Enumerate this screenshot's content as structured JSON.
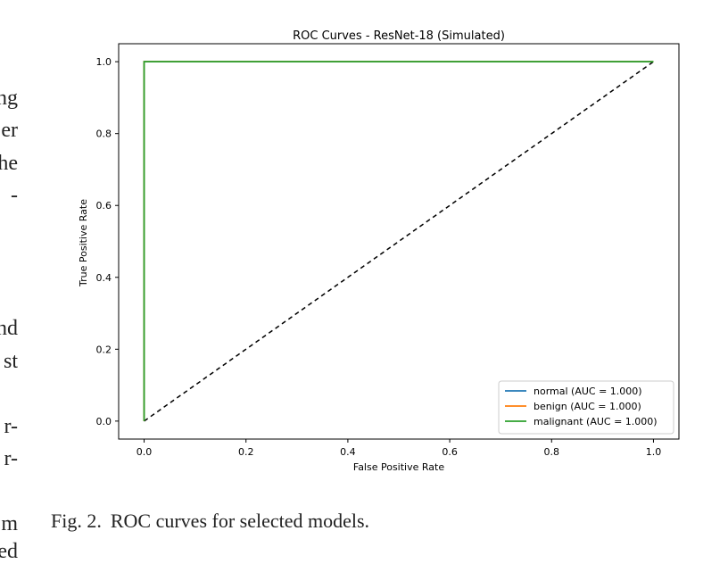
{
  "margin_text": [
    "ng",
    "er",
    "he",
    "-",
    "nd",
    "st",
    "r-",
    "r-",
    "m",
    "ed"
  ],
  "caption": {
    "label": "Fig. 2.",
    "text": "ROC curves for selected models."
  },
  "chart_data": {
    "type": "line",
    "title": "ROC Curves - ResNet-18 (Simulated)",
    "xlabel": "False Positive Rate",
    "ylabel": "True Positive Rate",
    "xlim": [
      -0.05,
      1.05
    ],
    "ylim": [
      -0.05,
      1.05
    ],
    "xticks": [
      "0.0",
      "0.2",
      "0.4",
      "0.6",
      "0.8",
      "1.0"
    ],
    "yticks": [
      "0.0",
      "0.2",
      "0.4",
      "0.6",
      "0.8",
      "1.0"
    ],
    "grid": false,
    "legend_position": "lower-right",
    "series": [
      {
        "name": "normal (AUC = 1.000)",
        "color": "#1f77b4",
        "x": [
          0,
          0,
          1
        ],
        "y": [
          0,
          1,
          1
        ]
      },
      {
        "name": "benign (AUC = 1.000)",
        "color": "#ff7f0e",
        "x": [
          0,
          0,
          1
        ],
        "y": [
          0,
          1,
          1
        ]
      },
      {
        "name": "malignant (AUC = 1.000)",
        "color": "#2ca02c",
        "x": [
          0,
          0,
          1
        ],
        "y": [
          0,
          1,
          1
        ]
      }
    ],
    "reference_line": {
      "style": "dashed",
      "color": "#000000",
      "x": [
        0,
        1
      ],
      "y": [
        0,
        1
      ]
    }
  }
}
